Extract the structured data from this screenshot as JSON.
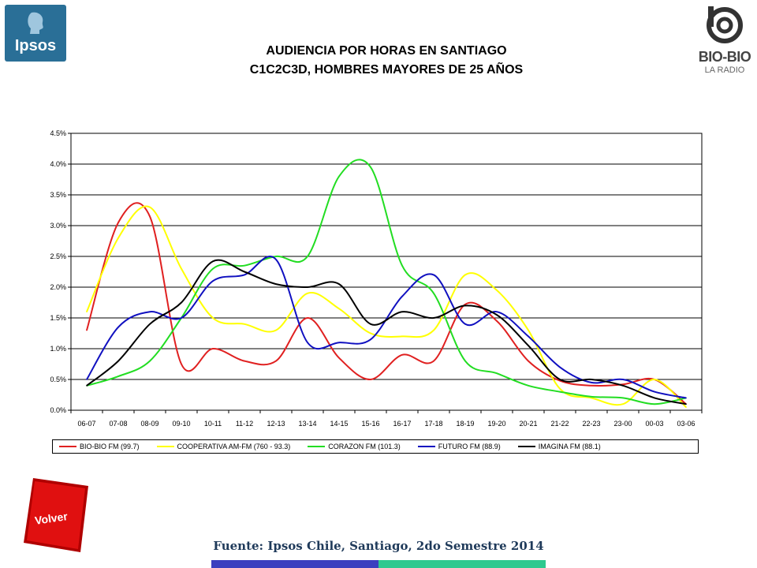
{
  "header": {
    "title_line1": "AUDIENCIA POR HORAS EN SANTIAGO",
    "title_line2": "C1C2C3D, HOMBRES MAYORES DE 25 AÑOS",
    "logo_left_text": "Ipsos",
    "logo_right_name": "BIO-BIO",
    "logo_right_sub": "LA RADIO"
  },
  "chart_data": {
    "type": "line",
    "title": "",
    "xlabel": "",
    "ylabel": "",
    "ylim": [
      0,
      4.5
    ],
    "yticks": [
      "0.0%",
      "0.5%",
      "1.0%",
      "1.5%",
      "2.0%",
      "2.5%",
      "3.0%",
      "3.5%",
      "4.0%",
      "4.5%"
    ],
    "grid": "horizontal",
    "legend_position": "bottom",
    "categories": [
      "06-07",
      "07-08",
      "08-09",
      "09-10",
      "10-11",
      "11-12",
      "12-13",
      "13-14",
      "14-15",
      "15-16",
      "16-17",
      "17-18",
      "18-19",
      "19-20",
      "20-21",
      "21-22",
      "22-23",
      "23-00",
      "00-03",
      "03-06"
    ],
    "series": [
      {
        "name": "BIO-BIO FM (99.7)",
        "color": "#e02020",
        "values": [
          1.3,
          3.05,
          3.15,
          0.75,
          1.0,
          0.8,
          0.8,
          1.5,
          0.85,
          0.5,
          0.9,
          0.8,
          1.72,
          1.45,
          0.8,
          0.48,
          0.4,
          0.42,
          0.5,
          0.1
        ]
      },
      {
        "name": "COOPERATIVA AM-FM (760 - 93.3)",
        "color": "#ffff00",
        "values": [
          1.6,
          2.8,
          3.3,
          2.3,
          1.5,
          1.4,
          1.3,
          1.9,
          1.65,
          1.25,
          1.2,
          1.3,
          2.2,
          1.95,
          1.3,
          0.35,
          0.2,
          0.1,
          0.5,
          0.05
        ]
      },
      {
        "name": "CORAZON FM (101.3)",
        "color": "#22dd22",
        "values": [
          0.4,
          0.55,
          0.8,
          1.5,
          2.3,
          2.35,
          2.5,
          2.5,
          3.8,
          3.95,
          2.35,
          1.9,
          0.8,
          0.6,
          0.4,
          0.3,
          0.22,
          0.2,
          0.1,
          0.2
        ]
      },
      {
        "name": "FUTURO FM (88.9)",
        "color": "#1010c0",
        "values": [
          0.5,
          1.35,
          1.6,
          1.5,
          2.1,
          2.2,
          2.45,
          1.1,
          1.1,
          1.15,
          1.85,
          2.2,
          1.4,
          1.6,
          1.2,
          0.7,
          0.45,
          0.5,
          0.3,
          0.2
        ]
      },
      {
        "name": "IMAGINA FM (88.1)",
        "color": "#000000",
        "values": [
          0.4,
          0.8,
          1.4,
          1.75,
          2.42,
          2.25,
          2.05,
          2.0,
          2.05,
          1.4,
          1.6,
          1.5,
          1.7,
          1.55,
          1.05,
          0.5,
          0.5,
          0.4,
          0.2,
          0.1
        ]
      }
    ]
  },
  "footer": {
    "volver_label": "Volver",
    "source": "Fuente: Ipsos Chile, Santiago, 2do Semestre 2014"
  }
}
